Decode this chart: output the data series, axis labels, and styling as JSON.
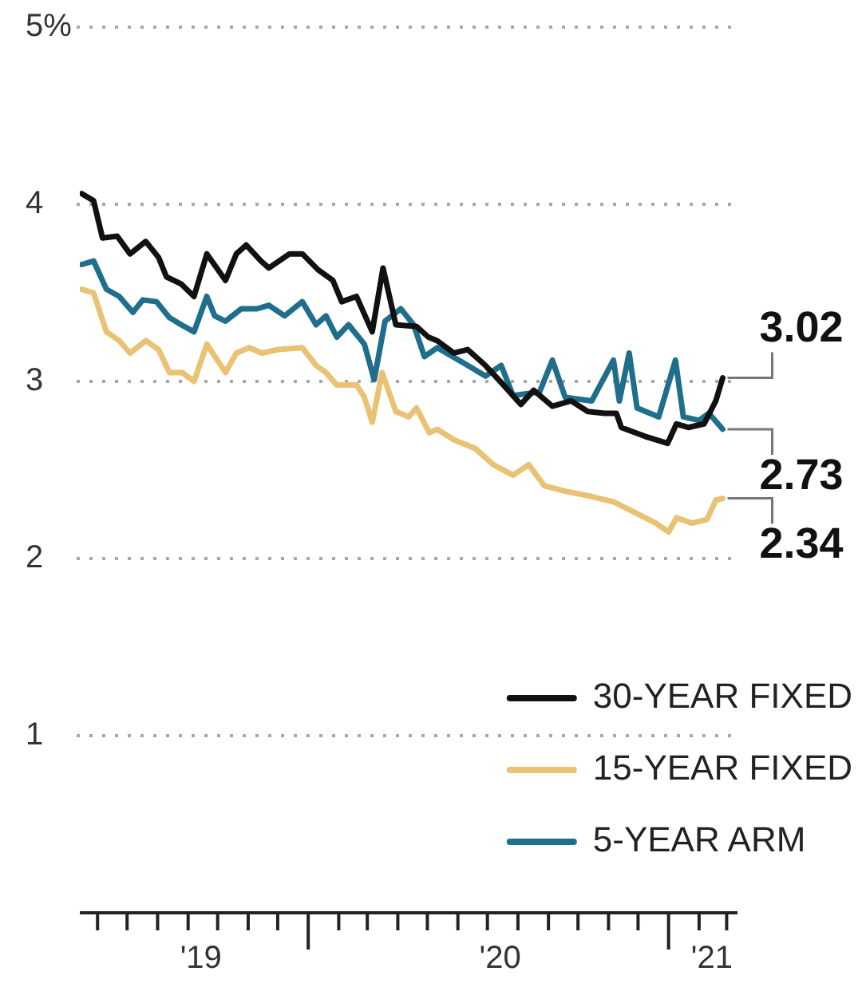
{
  "chart_data": {
    "type": "line",
    "xlim": [
      "2019-05-14",
      "2021-03-12"
    ],
    "ylim": [
      0,
      5
    ],
    "yticks": [
      {
        "value": 5,
        "label": "5%"
      },
      4,
      3,
      2,
      1
    ],
    "xticks": [
      {
        "value": "2019-06-01",
        "label": null
      },
      {
        "value": "2019-07-01",
        "label": null
      },
      {
        "value": "2019-08-01",
        "label": null
      },
      {
        "value": "2019-09-01",
        "label": "'19"
      },
      {
        "value": "2019-10-01",
        "label": null
      },
      {
        "value": "2019-11-01",
        "label": null
      },
      {
        "value": "2019-12-01",
        "label": null
      },
      {
        "value": "2020-01-01",
        "label": null
      },
      {
        "value": "2020-02-01",
        "label": null
      },
      {
        "value": "2020-03-01",
        "label": null
      },
      {
        "value": "2020-04-01",
        "label": null
      },
      {
        "value": "2020-05-01",
        "label": null
      },
      {
        "value": "2020-06-01",
        "label": null
      },
      {
        "value": "2020-07-01",
        "label": "'20"
      },
      {
        "value": "2020-08-01",
        "label": null
      },
      {
        "value": "2020-09-01",
        "label": null
      },
      {
        "value": "2020-10-01",
        "label": null
      },
      {
        "value": "2020-11-01",
        "label": null
      },
      {
        "value": "2020-12-01",
        "label": null
      },
      {
        "value": "2021-01-01",
        "label": null
      },
      {
        "value": "2021-02-01",
        "label": "'21"
      },
      {
        "value": "2021-03-01",
        "label": null
      }
    ],
    "grid": "y",
    "legend": "bottom right",
    "series": [
      {
        "name": "30-YEAR FIXED",
        "color": "#111111",
        "x": [
          "2019-05-16",
          "2019-05-28",
          "2019-06-06",
          "2019-06-21",
          "2019-07-04",
          "2019-07-20",
          "2019-08-02",
          "2019-08-10",
          "2019-08-25",
          "2019-09-07",
          "2019-09-20",
          "2019-10-09",
          "2019-10-20",
          "2019-10-30",
          "2019-11-14",
          "2019-11-22",
          "2019-12-13",
          "2019-12-26",
          "2020-01-11",
          "2020-01-26",
          "2020-02-04",
          "2020-02-19",
          "2020-03-06",
          "2020-03-17",
          "2020-03-30",
          "2020-04-20",
          "2020-05-02",
          "2020-05-11",
          "2020-05-28",
          "2020-06-11",
          "2020-06-29",
          "2020-07-14",
          "2020-08-04",
          "2020-08-17",
          "2020-09-05",
          "2020-09-24",
          "2020-10-11",
          "2020-10-28",
          "2020-11-09",
          "2020-11-14",
          "2020-12-08",
          "2020-12-31",
          "2021-01-09",
          "2021-01-21",
          "2021-02-06",
          "2021-02-18",
          "2021-02-25"
        ],
        "values": [
          4.06,
          4.02,
          3.81,
          3.82,
          3.72,
          3.79,
          3.7,
          3.59,
          3.55,
          3.48,
          3.72,
          3.57,
          3.72,
          3.77,
          3.68,
          3.64,
          3.72,
          3.72,
          3.63,
          3.57,
          3.45,
          3.48,
          3.28,
          3.64,
          3.32,
          3.31,
          3.25,
          3.23,
          3.16,
          3.18,
          3.09,
          3.0,
          2.87,
          2.95,
          2.86,
          2.89,
          2.83,
          2.82,
          2.82,
          2.74,
          2.69,
          2.65,
          2.76,
          2.74,
          2.76,
          2.89,
          3.02
        ],
        "value_labels": [
          null,
          null,
          null,
          null,
          null,
          null,
          null,
          null,
          null,
          null,
          null,
          null,
          null,
          null,
          null,
          null,
          null,
          null,
          null,
          null,
          null,
          null,
          null,
          null,
          null,
          null,
          null,
          null,
          null,
          null,
          null,
          null,
          null,
          null,
          null,
          null,
          null,
          null,
          null,
          null,
          null,
          null,
          null,
          null,
          null,
          null,
          "3.02"
        ]
      },
      {
        "name": "15-YEAR FIXED",
        "color": "#e9c273",
        "x": [
          "2019-05-16",
          "2019-05-28",
          "2019-06-10",
          "2019-06-23",
          "2019-07-04",
          "2019-07-20",
          "2019-08-02",
          "2019-08-13",
          "2019-08-26",
          "2019-09-07",
          "2019-09-20",
          "2019-10-09",
          "2019-10-20",
          "2019-11-02",
          "2019-11-15",
          "2019-12-02",
          "2019-12-26",
          "2020-01-09",
          "2020-01-19",
          "2020-01-30",
          "2020-02-19",
          "2020-02-27",
          "2020-03-06",
          "2020-03-16",
          "2020-03-30",
          "2020-04-12",
          "2020-04-20",
          "2020-05-03",
          "2020-05-11",
          "2020-05-28",
          "2020-06-19",
          "2020-07-07",
          "2020-07-27",
          "2020-08-12",
          "2020-08-28",
          "2020-09-18",
          "2020-10-15",
          "2020-11-06",
          "2020-11-28",
          "2020-12-19",
          "2021-01-01",
          "2021-01-09",
          "2021-01-25",
          "2021-02-09",
          "2021-02-18",
          "2021-02-25"
        ],
        "values": [
          3.52,
          3.5,
          3.28,
          3.23,
          3.16,
          3.23,
          3.18,
          3.05,
          3.05,
          3.0,
          3.21,
          3.05,
          3.16,
          3.19,
          3.16,
          3.18,
          3.19,
          3.09,
          3.05,
          2.98,
          2.98,
          2.91,
          2.77,
          3.05,
          2.83,
          2.8,
          2.85,
          2.71,
          2.73,
          2.67,
          2.62,
          2.53,
          2.47,
          2.53,
          2.41,
          2.38,
          2.35,
          2.32,
          2.26,
          2.2,
          2.15,
          2.23,
          2.2,
          2.22,
          2.33,
          2.34
        ],
        "value_labels": [
          null,
          null,
          null,
          null,
          null,
          null,
          null,
          null,
          null,
          null,
          null,
          null,
          null,
          null,
          null,
          null,
          null,
          null,
          null,
          null,
          null,
          null,
          null,
          null,
          null,
          null,
          null,
          null,
          null,
          null,
          null,
          null,
          null,
          null,
          null,
          null,
          null,
          null,
          null,
          null,
          null,
          null,
          null,
          null,
          null,
          "2.34"
        ]
      },
      {
        "name": "5-YEAR ARM",
        "color": "#1f6e8c",
        "x": [
          "2019-05-16",
          "2019-05-28",
          "2019-06-10",
          "2019-06-23",
          "2019-07-07",
          "2019-07-17",
          "2019-07-31",
          "2019-08-13",
          "2019-08-25",
          "2019-09-07",
          "2019-09-20",
          "2019-09-28",
          "2019-10-09",
          "2019-10-25",
          "2019-11-10",
          "2019-11-22",
          "2019-12-08",
          "2019-12-26",
          "2020-01-09",
          "2020-01-19",
          "2020-01-30",
          "2020-02-11",
          "2020-02-27",
          "2020-03-08",
          "2020-03-19",
          "2020-04-04",
          "2020-04-17",
          "2020-04-28",
          "2020-05-11",
          "2020-06-08",
          "2020-06-29",
          "2020-07-15",
          "2020-07-27",
          "2020-08-23",
          "2020-09-05",
          "2020-09-18",
          "2020-10-15",
          "2020-11-06",
          "2020-11-12",
          "2020-11-22",
          "2020-11-30",
          "2020-12-22",
          "2021-01-08",
          "2021-01-16",
          "2021-02-01",
          "2021-02-11",
          "2021-02-25"
        ],
        "values": [
          3.66,
          3.68,
          3.52,
          3.48,
          3.39,
          3.46,
          3.45,
          3.36,
          3.32,
          3.28,
          3.48,
          3.37,
          3.34,
          3.41,
          3.41,
          3.43,
          3.37,
          3.45,
          3.32,
          3.37,
          3.25,
          3.32,
          3.21,
          3.01,
          3.34,
          3.41,
          3.32,
          3.14,
          3.19,
          3.1,
          3.03,
          3.09,
          2.92,
          2.94,
          3.12,
          2.91,
          2.89,
          3.12,
          2.89,
          3.16,
          2.85,
          2.8,
          3.12,
          2.8,
          2.78,
          2.82,
          2.73
        ],
        "value_labels": [
          null,
          null,
          null,
          null,
          null,
          null,
          null,
          null,
          null,
          null,
          null,
          null,
          null,
          null,
          null,
          null,
          null,
          null,
          null,
          null,
          null,
          null,
          null,
          null,
          null,
          null,
          null,
          null,
          null,
          null,
          null,
          null,
          null,
          null,
          null,
          null,
          null,
          null,
          null,
          null,
          null,
          null,
          null,
          null,
          null,
          null,
          "2.73"
        ]
      }
    ]
  }
}
